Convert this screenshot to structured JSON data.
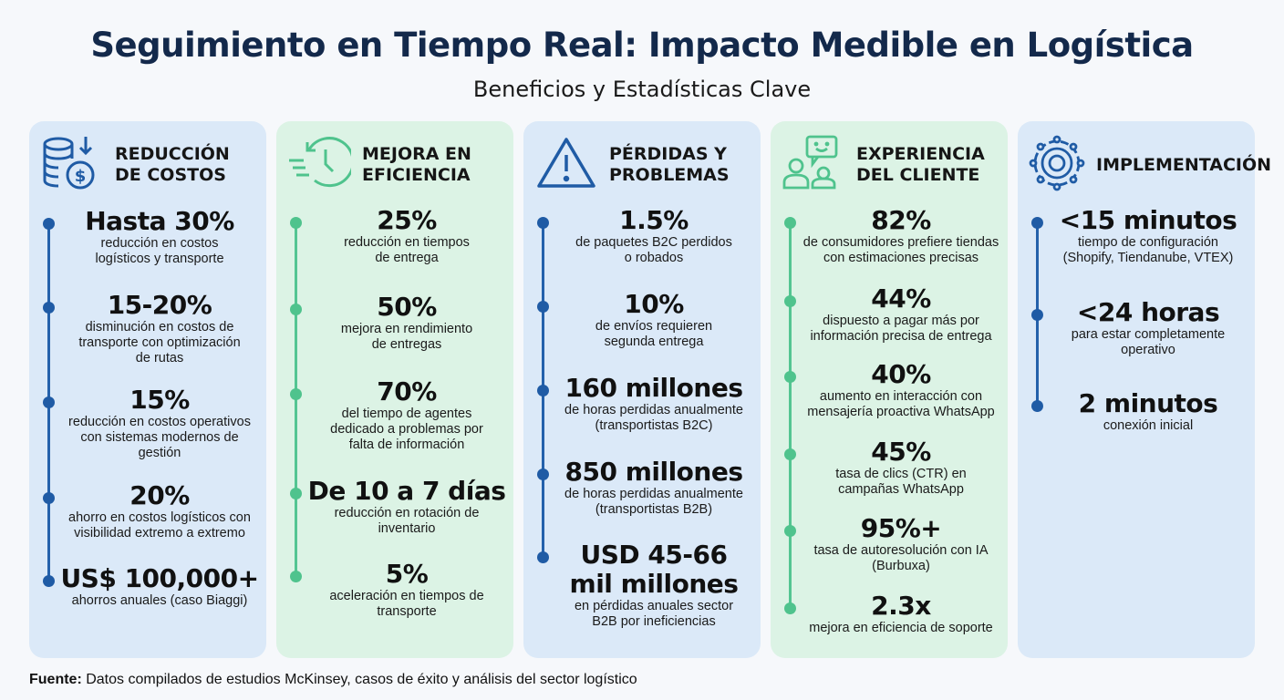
{
  "header": {
    "title": "Seguimiento en Tiempo Real: Impacto Medible en Logística",
    "subtitle": "Beneficios y Estadísticas Clave"
  },
  "colors": {
    "blue_panel": "#dbe9f8",
    "green_panel": "#dcf3e5",
    "blue_accent": "#1f5ba5",
    "green_accent": "#4fc38d",
    "title": "#13294b"
  },
  "columns": [
    {
      "title": "REDUCCIÓN\nDE COSTOS",
      "icon": "coins-dollar-down-icon",
      "theme": "blue",
      "items": [
        {
          "value": "Hasta 30%",
          "desc": "reducción en costos\nlogísticos y transporte"
        },
        {
          "value": "15-20%",
          "desc": "disminución en costos de\ntransporte con optimización\nde rutas"
        },
        {
          "value": "15%",
          "desc": "reducción en costos operativos\ncon sistemas modernos de\ngestión"
        },
        {
          "value": "20%",
          "desc": "ahorro en costos logísticos con\nvisibilidad extremo a extremo"
        },
        {
          "value": "US$ 100,000+",
          "desc": "ahorros anuales (caso Biaggi)"
        }
      ]
    },
    {
      "title": "MEJORA EN\nEFICIENCIA",
      "icon": "fast-clock-icon",
      "theme": "green",
      "items": [
        {
          "value": "25%",
          "desc": "reducción en tiempos\nde entrega"
        },
        {
          "value": "50%",
          "desc": "mejora en rendimiento\nde entregas"
        },
        {
          "value": "70%",
          "desc": "del tiempo de agentes\ndedicado a problemas por\nfalta de información"
        },
        {
          "value": "De 10 a 7 días",
          "desc": "reducción en rotación de\ninventario"
        },
        {
          "value": "5%",
          "desc": "aceleración en tiempos de\ntransporte"
        }
      ]
    },
    {
      "title": "PÉRDIDAS Y\nPROBLEMAS",
      "icon": "warning-triangle-icon",
      "theme": "blue",
      "items": [
        {
          "value": "1.5%",
          "desc": "de paquetes B2C perdidos\no robados"
        },
        {
          "value": "10%",
          "desc": "de envíos requieren\nsegunda entrega"
        },
        {
          "value": "160 millones",
          "desc": "de horas perdidas anualmente\n(transportistas B2C)"
        },
        {
          "value": "850 millones",
          "desc": "de horas perdidas anualmente\n(transportistas B2B)"
        },
        {
          "value": "USD 45-66\nmil millones",
          "desc": "en pérdidas anuales sector\nB2B por ineficiencias"
        }
      ]
    },
    {
      "title": "EXPERIENCIA\nDEL CLIENTE",
      "icon": "customers-chat-icon",
      "theme": "green",
      "items": [
        {
          "value": "82%",
          "desc": "de consumidores prefiere tiendas\ncon estimaciones precisas"
        },
        {
          "value": "44%",
          "desc": "dispuesto a pagar más por\ninformación precisa de entrega"
        },
        {
          "value": "40%",
          "desc": "aumento en interacción con\nmensajería proactiva WhatsApp"
        },
        {
          "value": "45%",
          "desc": "tasa de clics (CTR) en\ncampañas WhatsApp"
        },
        {
          "value": "95%+",
          "desc": "tasa de autoresolución con IA\n(Burbuxa)"
        },
        {
          "value": "2.3x",
          "desc": "mejora en eficiencia de soporte"
        }
      ]
    },
    {
      "title": "IMPLEMENTACIÓN",
      "icon": "gear-network-icon",
      "theme": "blue",
      "items": [
        {
          "value": "<15 minutos",
          "desc": "tiempo de configuración\n(Shopify, Tiendanube, VTEX)"
        },
        {
          "value": "<24 horas",
          "desc": "para estar completamente\noperativo"
        },
        {
          "value": "2 minutos",
          "desc": "conexión inicial"
        }
      ]
    }
  ],
  "footer": {
    "label": "Fuente:",
    "text": " Datos compilados de estudios McKinsey, casos de éxito y análisis del sector logístico"
  }
}
